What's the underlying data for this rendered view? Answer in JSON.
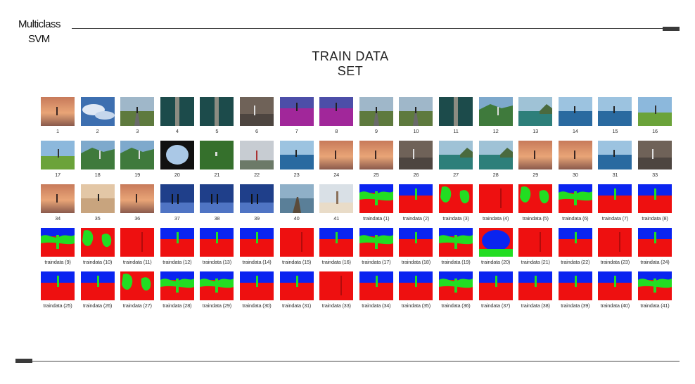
{
  "header": {
    "brand_line1": "Multiclass",
    "brand_line2": "SVM"
  },
  "title": {
    "line1": "TRAIN DATA",
    "line2": "SET"
  },
  "colors": {
    "sky": "#0a24f0",
    "ground": "#ee1010",
    "vegetation": "#22dd22"
  },
  "rows": [
    {
      "labels": [
        "1",
        "2",
        "3",
        "4",
        "5",
        "6",
        "7",
        "8",
        "9",
        "10",
        "11",
        "12",
        "13",
        "14",
        "15",
        "16"
      ],
      "kinds": [
        "photo",
        "photo",
        "photo",
        "photo",
        "photo",
        "photo",
        "photo",
        "photo",
        "photo",
        "photo",
        "photo",
        "photo",
        "photo",
        "photo",
        "photo",
        "photo"
      ],
      "styles": [
        "sunset",
        "clouds",
        "road",
        "aerial",
        "aerial",
        "rock",
        "magenta",
        "magenta",
        "road",
        "road",
        "aerial",
        "hill",
        "coast",
        "sea",
        "sea",
        "field"
      ]
    },
    {
      "labels": [
        "17",
        "18",
        "19",
        "20",
        "21",
        "22",
        "23",
        "24",
        "25",
        "26",
        "27",
        "28",
        "29",
        "30",
        "31",
        "33"
      ],
      "kinds": [
        "photo",
        "photo",
        "photo",
        "photo",
        "photo",
        "photo",
        "photo",
        "photo",
        "photo",
        "photo",
        "photo",
        "photo",
        "photo",
        "photo",
        "photo",
        "photo"
      ],
      "styles": [
        "field",
        "hill",
        "hill",
        "cave",
        "grass",
        "mist",
        "sea",
        "sunset",
        "sunset",
        "rock",
        "coast",
        "coast",
        "sunset",
        "sunset",
        "sea",
        "rock"
      ]
    },
    {
      "labels": [
        "34",
        "35",
        "36",
        "37",
        "38",
        "39",
        "40",
        "41",
        "traindata (1)",
        "traindata (2)",
        "traindata (3)",
        "traindata (4)",
        "traindata (5)",
        "traindata (6)",
        "traindata (7)",
        "traindata (8)"
      ],
      "kinds": [
        "photo",
        "photo",
        "photo",
        "photo",
        "photo",
        "photo",
        "photo",
        "photo",
        "mask",
        "mask",
        "mask",
        "mask",
        "mask",
        "mask",
        "mask",
        "mask"
      ],
      "styles": [
        "sunset",
        "desert",
        "sunset",
        "night",
        "night",
        "night",
        "pier",
        "beach",
        "greenhill",
        "bluetop",
        "greenblob",
        "allred",
        "greenblob",
        "greenhill",
        "bluetop",
        "bluetop"
      ]
    },
    {
      "labels": [
        "traindata (9)",
        "traindata (10)",
        "traindata (11)",
        "traindata (12)",
        "traindata (13)",
        "traindata (14)",
        "traindata (15)",
        "traindata (16)",
        "traindata (17)",
        "traindata (18)",
        "traindata (19)",
        "traindata (20)",
        "traindata (21)",
        "traindata (22)",
        "traindata (23)",
        "traindata (24)"
      ],
      "kinds": [
        "mask",
        "mask",
        "mask",
        "mask",
        "mask",
        "mask",
        "mask",
        "mask",
        "mask",
        "mask",
        "mask",
        "mask",
        "mask",
        "mask",
        "mask",
        "mask"
      ],
      "styles": [
        "greenhill",
        "greenblob",
        "allred",
        "bluetop",
        "bluetop",
        "bluetop",
        "allred",
        "bluetop",
        "greenhill",
        "bluetop",
        "greenhill",
        "cave",
        "allred",
        "bluetop",
        "allred",
        "bluetop"
      ]
    },
    {
      "labels": [
        "traindata (25)",
        "traindata (26)",
        "traindata (27)",
        "traindata (28)",
        "traindata (29)",
        "traindata (30)",
        "traindata (31)",
        "traindata (33)",
        "traindata (34)",
        "traindata (35)",
        "traindata (36)",
        "traindata (37)",
        "traindata (38)",
        "traindata (39)",
        "traindata (40)",
        "traindata (41)"
      ],
      "kinds": [
        "mask",
        "mask",
        "mask",
        "mask",
        "mask",
        "mask",
        "mask",
        "mask",
        "mask",
        "mask",
        "mask",
        "mask",
        "mask",
        "mask",
        "mask",
        "mask"
      ],
      "styles": [
        "bluetop",
        "bluetop",
        "greenblob",
        "greenhill",
        "greenhill",
        "bluetop",
        "bluetop",
        "allred",
        "bluetop",
        "bluetop",
        "greenhill",
        "bluetop",
        "bluetop",
        "bluetop",
        "bluetop",
        "greenhill"
      ]
    }
  ]
}
